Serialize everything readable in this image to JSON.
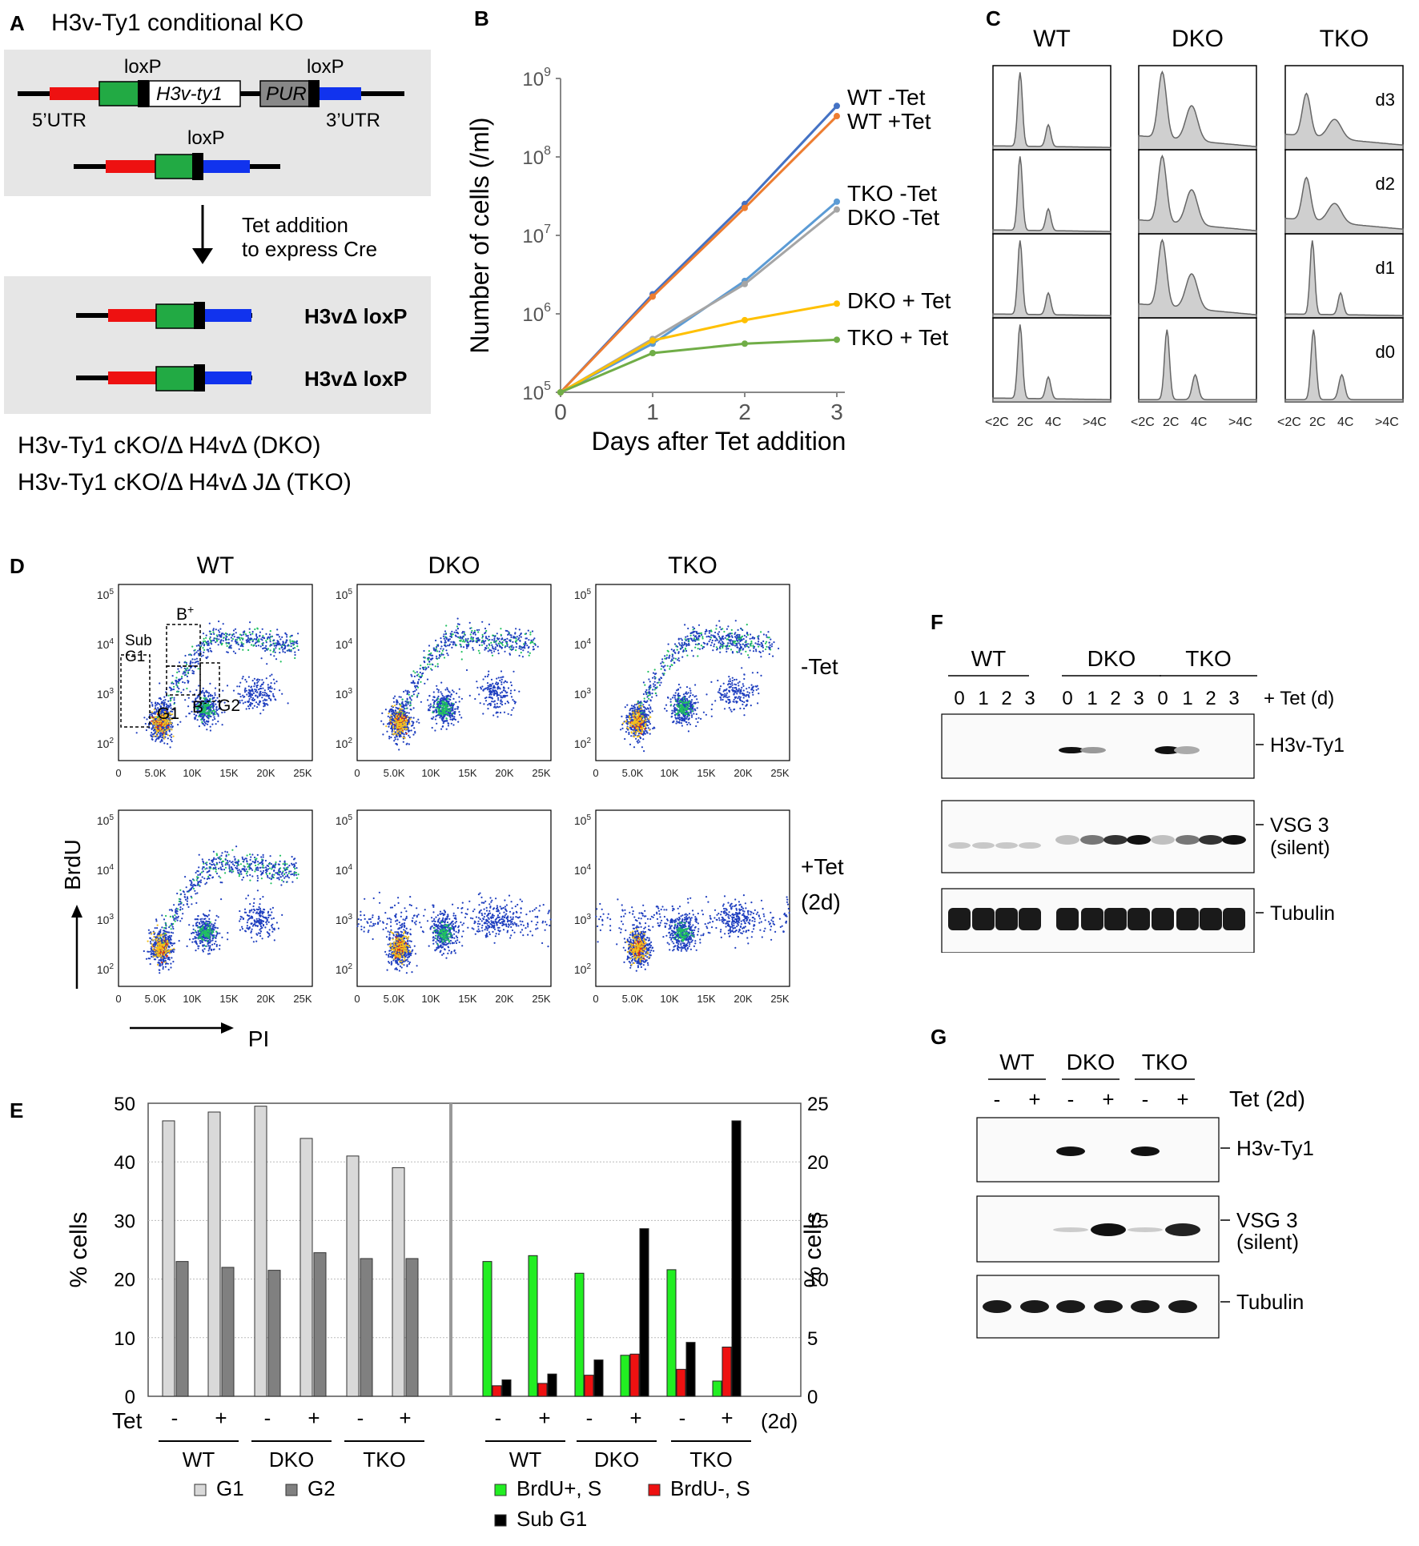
{
  "panels": {
    "A": "A",
    "B": "B",
    "C": "C",
    "D": "D",
    "E": "E",
    "F": "F",
    "G": "G"
  },
  "panel_a": {
    "title": "H3v-Ty1 conditional KO",
    "loxp": "loxP",
    "gene": "H3v-ty1",
    "pur": "PUR",
    "utr5": "5’UTR",
    "utr3": "3’UTR",
    "arrow_text_1": "Tet addition",
    "arrow_text_2": "to express Cre",
    "allele_label": "H3vΔ loxP",
    "genotype_dko": "H3v-Ty1 cKO/Δ H4vΔ (DKO)",
    "genotype_tko": "H3v-Ty1 cKO/Δ H4vΔ JΔ (TKO)",
    "colors": {
      "red": "#ee1111",
      "green": "#22aa44",
      "blue": "#1133ee",
      "box": "#e6e6e6"
    }
  },
  "chart_data": [
    {
      "id": "B",
      "type": "line",
      "title": "",
      "xlabel": "Days after Tet addition",
      "ylabel": "Number of cells (/ml)",
      "x": [
        0,
        1,
        2,
        3
      ],
      "xlim": [
        0,
        3
      ],
      "ylim_log10": [
        5,
        9
      ],
      "ytick_base": "10",
      "yticks_exp": [
        "5",
        "6",
        "7",
        "8",
        "9"
      ],
      "xticks": [
        "0",
        "1",
        "2",
        "3"
      ],
      "series": [
        {
          "name": "WT -Tet",
          "color": "#4472c4",
          "log10_values": [
            5.0,
            6.25,
            7.4,
            8.65
          ]
        },
        {
          "name": "WT +Tet",
          "color": "#ed7d31",
          "log10_values": [
            5.0,
            6.22,
            7.35,
            8.52
          ]
        },
        {
          "name": "TKO -Tet",
          "color": "#5b9bd5",
          "log10_values": [
            5.0,
            5.62,
            6.42,
            7.43
          ]
        },
        {
          "name": "DKO -Tet",
          "color": "#a5a5a5",
          "log10_values": [
            5.0,
            5.68,
            6.38,
            7.33
          ]
        },
        {
          "name": "DKO + Tet",
          "color": "#ffc000",
          "log10_values": [
            5.0,
            5.66,
            5.92,
            6.13
          ]
        },
        {
          "name": "TKO + Tet",
          "color": "#70ad47",
          "log10_values": [
            5.0,
            5.5,
            5.62,
            5.67
          ]
        }
      ]
    },
    {
      "id": "E-left",
      "type": "bar",
      "ylabel": "% cells",
      "ylim": [
        0,
        50
      ],
      "yticks": [
        "0",
        "10",
        "20",
        "30",
        "40",
        "50"
      ],
      "categories": [
        "WT -",
        "WT +",
        "DKO -",
        "DKO +",
        "TKO -",
        "TKO +"
      ],
      "series": [
        {
          "name": "G1",
          "color": "#d9d9d9",
          "values": [
            47,
            48.5,
            49.5,
            44,
            41,
            39
          ]
        },
        {
          "name": "G2",
          "color": "#808080",
          "values": [
            23,
            22,
            21.5,
            24.5,
            23.5,
            23.5
          ]
        }
      ]
    },
    {
      "id": "E-right",
      "type": "bar",
      "ylabel": "% cells",
      "ylim": [
        0,
        25
      ],
      "yticks": [
        "0",
        "5",
        "10",
        "15",
        "20",
        "25"
      ],
      "categories": [
        "WT -",
        "WT +",
        "DKO -",
        "DKO +",
        "TKO -",
        "TKO +"
      ],
      "series": [
        {
          "name": "BrdU+, S",
          "color": "#22ee22",
          "values": [
            11.5,
            12,
            10.5,
            3.5,
            10.8,
            1.3
          ]
        },
        {
          "name": "BrdU-, S",
          "color": "#ee1111",
          "values": [
            0.9,
            1.1,
            1.8,
            3.6,
            2.3,
            4.2
          ]
        },
        {
          "name": "Sub G1",
          "color": "#000000",
          "values": [
            1.4,
            1.9,
            3.1,
            14.3,
            4.6,
            23.5
          ]
        }
      ]
    }
  ],
  "panel_c": {
    "columns": [
      "WT",
      "DKO",
      "TKO"
    ],
    "days": [
      "d3",
      "d2",
      "d1",
      "d0"
    ],
    "axis_labels": [
      "<2C",
      "2C",
      "4C",
      ">4C"
    ]
  },
  "panel_d": {
    "columns": [
      "WT",
      "DKO",
      "TKO"
    ],
    "row_labels": [
      "-Tet",
      "+Tet",
      "(2d)"
    ],
    "gates": {
      "subg1_1": "Sub",
      "subg1_2": "G1",
      "bplus": "B",
      "bplus_sup": "+",
      "bminus": "B",
      "bminus_sup": "-",
      "g1": "G1",
      "g2": "G2"
    },
    "x_ticks": [
      "0",
      "5.0K",
      "10K",
      "15K",
      "20K",
      "25K"
    ],
    "y_tick_base": "10",
    "y_tick_exps": [
      "5",
      "4",
      "3",
      "2"
    ],
    "y_axis_label": "BrdU",
    "x_axis_label": "PI"
  },
  "panel_e": {
    "tet_label": "Tet",
    "signs": [
      "-",
      "+",
      "-",
      "+",
      "-",
      "+"
    ],
    "group_labels": [
      "WT",
      "DKO",
      "TKO"
    ],
    "suffix": "(2d)",
    "legend": {
      "g1": "G1",
      "g2": "G2",
      "brdu_pos": "BrdU+, S",
      "brdu_neg": "BrdU-, S",
      "subg1": "Sub G1"
    }
  },
  "panel_f": {
    "groups": [
      "WT",
      "DKO",
      "TKO"
    ],
    "lanes": [
      "0",
      "1",
      "2",
      "3",
      "0",
      "1",
      "2",
      "3",
      "0",
      "1",
      "2",
      "3"
    ],
    "tet_label": "+ Tet (d)",
    "bands": {
      "h3v": "H3v-Ty1",
      "vsg_1": "VSG 3",
      "vsg_2": "(silent)",
      "tubulin": "Tubulin"
    }
  },
  "panel_g": {
    "groups": [
      "WT",
      "DKO",
      "TKO"
    ],
    "signs": [
      "-",
      "+",
      "-",
      "+",
      "-",
      "+"
    ],
    "tet_label": "Tet (2d)",
    "bands": {
      "h3v": "H3v-Ty1",
      "vsg_1": "VSG 3",
      "vsg_2": "(silent)",
      "tubulin": "Tubulin"
    }
  }
}
